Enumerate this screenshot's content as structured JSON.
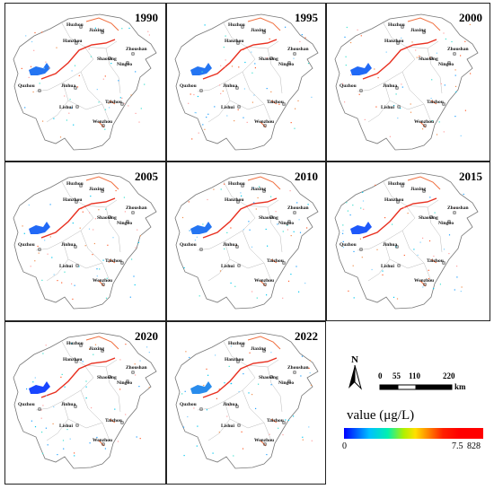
{
  "panels": [
    {
      "year": "1990"
    },
    {
      "year": "1995"
    },
    {
      "year": "2000"
    },
    {
      "year": "2005"
    },
    {
      "year": "2010"
    },
    {
      "year": "2015"
    },
    {
      "year": "2020"
    },
    {
      "year": "2022"
    }
  ],
  "cities": [
    "Huzhou",
    "Jiaxing",
    "Hanzhou",
    "Zhoushan",
    "Shaoxing",
    "Ningbo",
    "Quzhou",
    "Jinhua",
    "Lishui",
    "Taizhou",
    "Wenzhou"
  ],
  "north_label": "N",
  "scale_bar": {
    "ticks": [
      "0",
      "55",
      "110",
      "220"
    ],
    "unit": "km"
  },
  "legend": {
    "title": "value (μg/L)",
    "ticks": [
      "0",
      "7.5",
      "828"
    ],
    "colors": [
      "#0000ff",
      "#00c0ff",
      "#00f0b0",
      "#b0f000",
      "#ffe000",
      "#ff9000",
      "#ff2000",
      "#ff0000"
    ]
  }
}
